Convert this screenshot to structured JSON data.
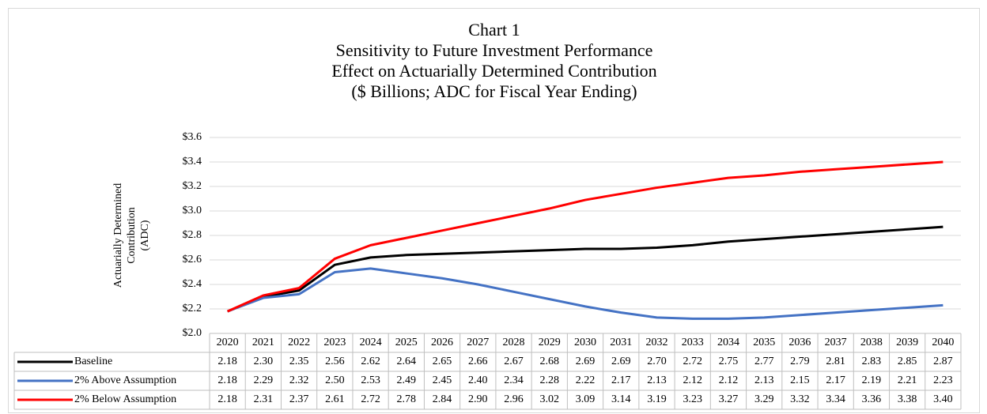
{
  "chart_data": {
    "type": "line",
    "title": "Chart 1",
    "subtitle": [
      "Sensitivity to Future Investment Performance",
      "Effect on Actuarially Determined Contribution",
      "($ Billions;  ADC for Fiscal Year Ending)"
    ],
    "ylabel": [
      "Actuarially Determined",
      "Contribution",
      "(ADC)"
    ],
    "categories": [
      "2020",
      "2021",
      "2022",
      "2023",
      "2024",
      "2025",
      "2026",
      "2027",
      "2028",
      "2029",
      "2030",
      "2031",
      "2032",
      "2033",
      "2034",
      "2035",
      "2036",
      "2037",
      "2038",
      "2039",
      "2040"
    ],
    "ylim": [
      2.0,
      3.6
    ],
    "yticks": [
      {
        "value": 2.0,
        "label": "$2.0"
      },
      {
        "value": 2.2,
        "label": "$2.2"
      },
      {
        "value": 2.4,
        "label": "$2.4"
      },
      {
        "value": 2.6,
        "label": "$2.6"
      },
      {
        "value": 2.8,
        "label": "$2.8"
      },
      {
        "value": 3.0,
        "label": "$3.0"
      },
      {
        "value": 3.2,
        "label": "$3.2"
      },
      {
        "value": 3.4,
        "label": "$3.4"
      },
      {
        "value": 3.6,
        "label": "$3.6"
      }
    ],
    "grid": true,
    "series": [
      {
        "name": "Baseline",
        "color": "#000000",
        "values": [
          2.18,
          2.3,
          2.35,
          2.56,
          2.62,
          2.64,
          2.65,
          2.66,
          2.67,
          2.68,
          2.69,
          2.69,
          2.7,
          2.72,
          2.75,
          2.77,
          2.79,
          2.81,
          2.83,
          2.85,
          2.87
        ],
        "value_labels": [
          "2.18",
          "2.30",
          "2.35",
          "2.56",
          "2.62",
          "2.64",
          "2.65",
          "2.66",
          "2.67",
          "2.68",
          "2.69",
          "2.69",
          "2.70",
          "2.72",
          "2.75",
          "2.77",
          "2.79",
          "2.81",
          "2.83",
          "2.85",
          "2.87"
        ]
      },
      {
        "name": "2% Above Assumption",
        "color": "#4472c4",
        "values": [
          2.18,
          2.29,
          2.32,
          2.5,
          2.53,
          2.49,
          2.45,
          2.4,
          2.34,
          2.28,
          2.22,
          2.17,
          2.13,
          2.12,
          2.12,
          2.13,
          2.15,
          2.17,
          2.19,
          2.21,
          2.23
        ],
        "value_labels": [
          "2.18",
          "2.29",
          "2.32",
          "2.50",
          "2.53",
          "2.49",
          "2.45",
          "2.40",
          "2.34",
          "2.28",
          "2.22",
          "2.17",
          "2.13",
          "2.12",
          "2.12",
          "2.13",
          "2.15",
          "2.17",
          "2.19",
          "2.21",
          "2.23"
        ]
      },
      {
        "name": "2% Below Assumption",
        "color": "#ff0000",
        "values": [
          2.18,
          2.31,
          2.37,
          2.61,
          2.72,
          2.78,
          2.84,
          2.9,
          2.96,
          3.02,
          3.09,
          3.14,
          3.19,
          3.23,
          3.27,
          3.29,
          3.32,
          3.34,
          3.36,
          3.38,
          3.4
        ],
        "value_labels": [
          "2.18",
          "2.31",
          "2.37",
          "2.61",
          "2.72",
          "2.78",
          "2.84",
          "2.90",
          "2.96",
          "3.02",
          "3.09",
          "3.14",
          "3.19",
          "3.23",
          "3.27",
          "3.29",
          "3.32",
          "3.34",
          "3.36",
          "3.38",
          "3.40"
        ]
      }
    ]
  }
}
